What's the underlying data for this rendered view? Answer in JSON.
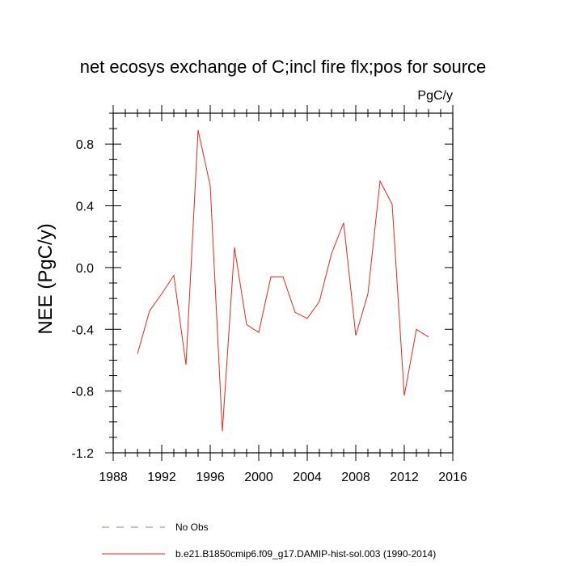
{
  "chart_data": {
    "type": "line",
    "title": "net ecosys exchange of C;incl fire flx;pos for source",
    "units_label": "PgC/y",
    "xlabel": "",
    "ylabel": "NEE  (PgC/y)",
    "xlim": [
      1988,
      2016
    ],
    "ylim": [
      -1.2,
      1.0
    ],
    "x_major_ticks": [
      1988,
      1992,
      1996,
      2000,
      2004,
      2008,
      2012,
      2016
    ],
    "x_tick_labels": [
      "1988",
      "1992",
      "1996",
      "2000",
      "2004",
      "2008",
      "2012",
      "2016"
    ],
    "x_minor_step": 1,
    "y_major_ticks": [
      -1.2,
      -0.8,
      -0.4,
      0.0,
      0.4,
      0.8
    ],
    "y_tick_labels": [
      "-1.2",
      "-0.8",
      "-0.4",
      "0.0",
      "0.4",
      "0.8"
    ],
    "y_minor_step": 0.1,
    "grid": false,
    "legend_position": "bottom",
    "series": [
      {
        "name": "No Obs",
        "color": "#7b7bf0",
        "dash": true,
        "x": [],
        "y": []
      },
      {
        "name": "b.e21.B1850cmip6.f09_g17.DAMIP-hist-sol.003 (1990-2014)",
        "color": "#e8271f",
        "dash": false,
        "x": [
          1990,
          1991,
          1992,
          1993,
          1994,
          1995,
          1996,
          1997,
          1998,
          1999,
          2000,
          2001,
          2002,
          2003,
          2004,
          2005,
          2006,
          2007,
          2008,
          2009,
          2010,
          2011,
          2012,
          2013,
          2014
        ],
        "y": [
          -0.56,
          -0.28,
          -0.17,
          -0.05,
          -0.63,
          0.89,
          0.53,
          -1.06,
          0.13,
          -0.37,
          -0.42,
          -0.06,
          -0.06,
          -0.29,
          -0.33,
          -0.22,
          0.09,
          0.29,
          -0.44,
          -0.17,
          0.56,
          0.41,
          -0.83,
          -0.4,
          -0.45
        ]
      }
    ]
  }
}
